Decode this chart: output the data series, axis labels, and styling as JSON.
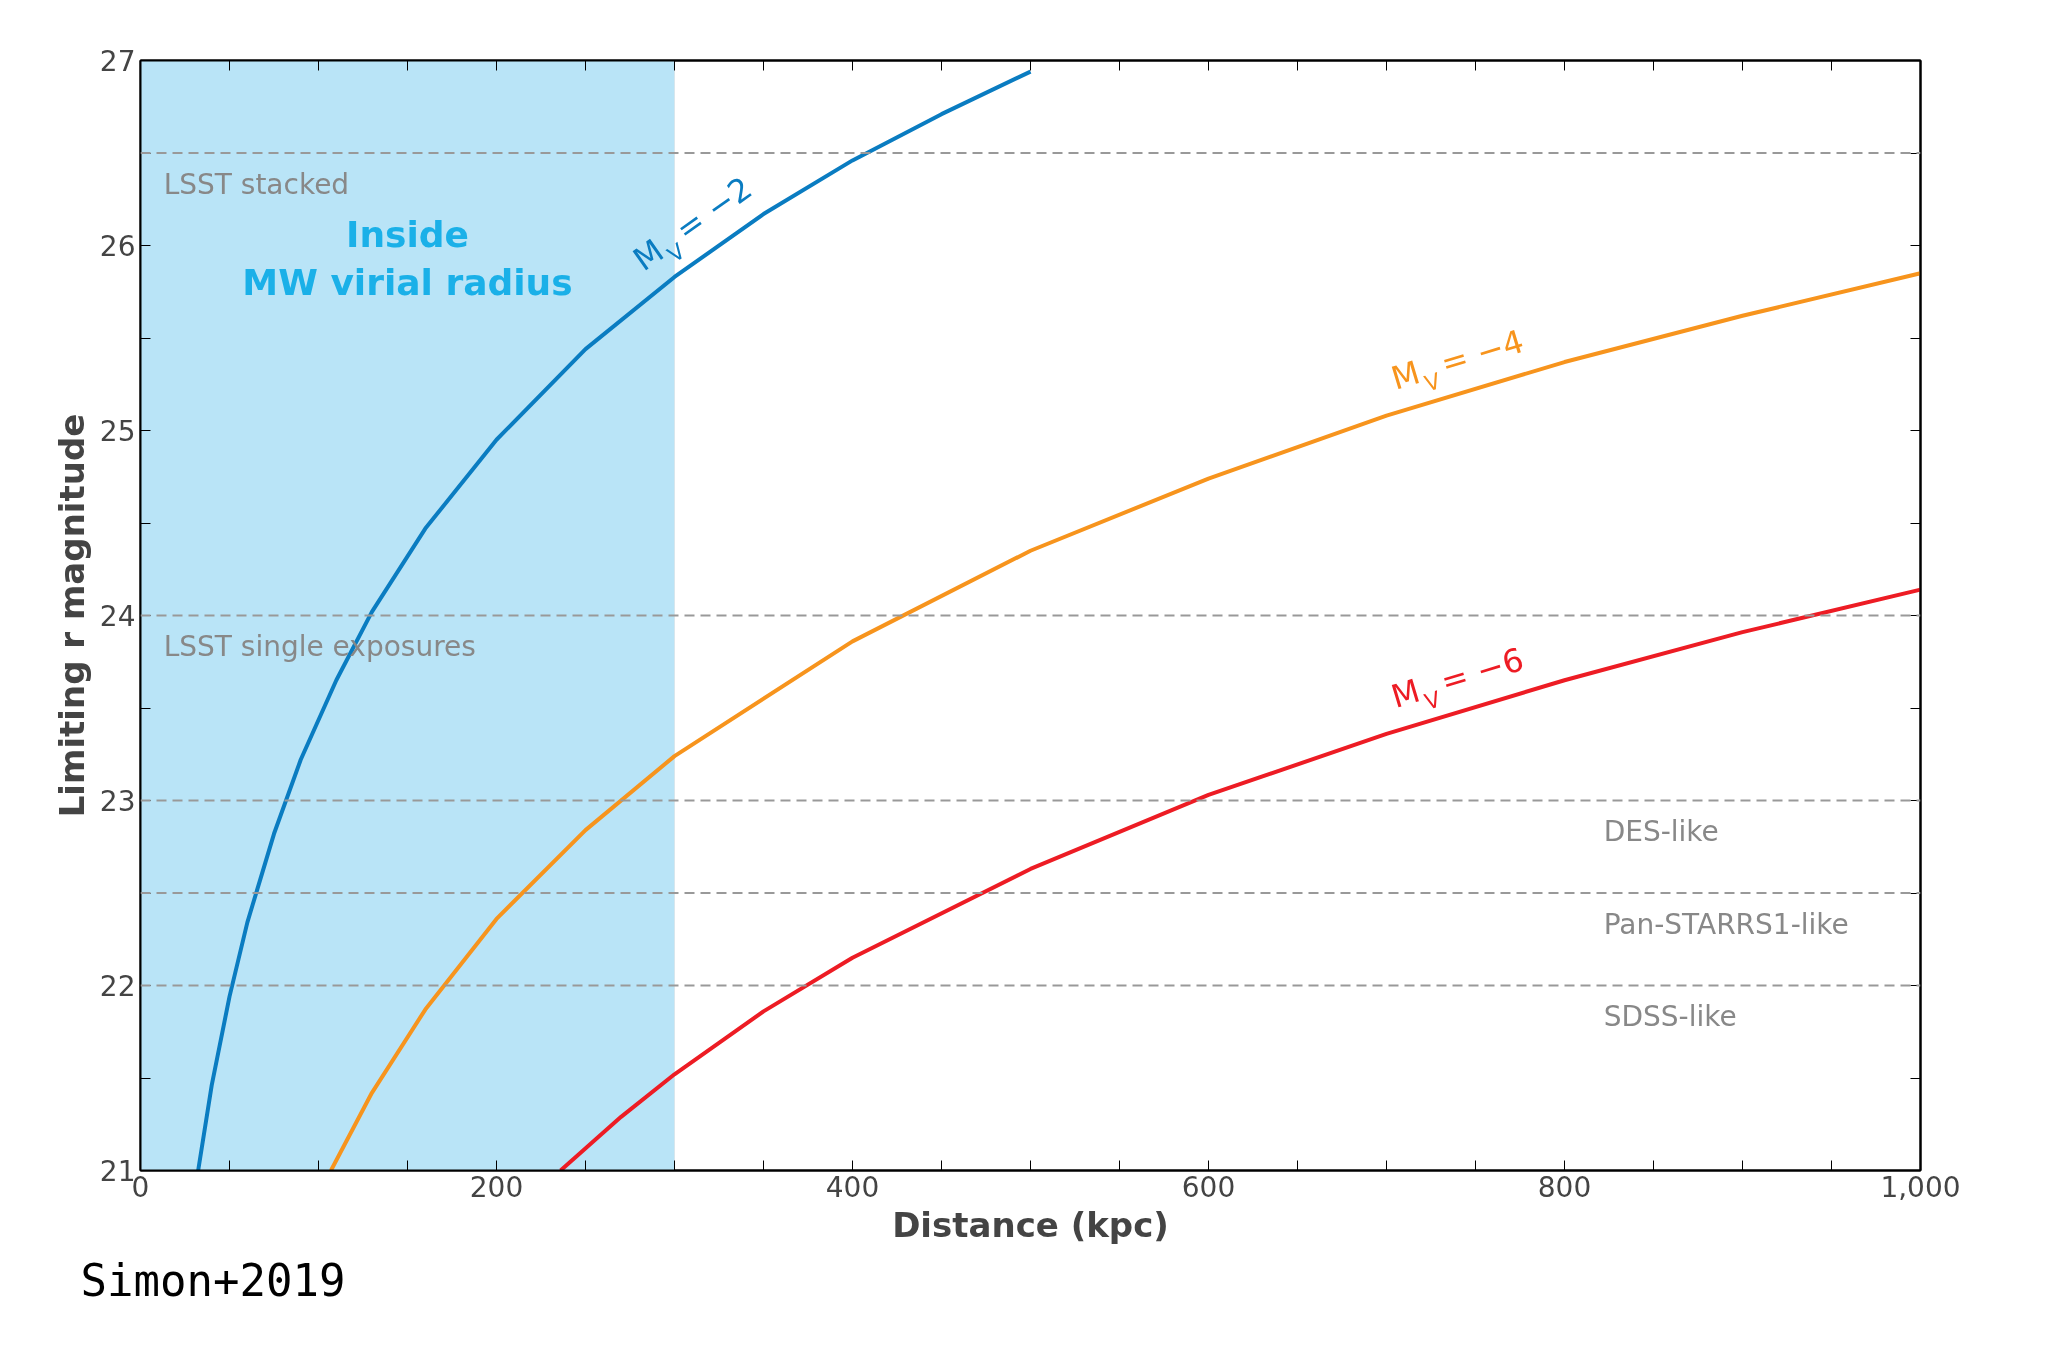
{
  "chart_data": {
    "type": "line",
    "xlabel": "Distance (kpc)",
    "ylabel": "Limiting r magnitude",
    "xlim": [
      0,
      1000
    ],
    "ylim": [
      21,
      27
    ],
    "xticks": [
      0,
      {
        "value": 50,
        "label": null
      },
      {
        "value": 100,
        "label": null
      },
      {
        "value": 150,
        "label": null
      },
      200,
      {
        "value": 250,
        "label": null
      },
      {
        "value": 300,
        "label": null
      },
      {
        "value": 350,
        "label": null
      },
      400,
      {
        "value": 450,
        "label": null
      },
      {
        "value": 500,
        "label": null
      },
      {
        "value": 550,
        "label": null
      },
      600,
      {
        "value": 650,
        "label": null
      },
      {
        "value": 700,
        "label": null
      },
      {
        "value": 750,
        "label": null
      },
      800,
      {
        "value": 850,
        "label": null
      },
      {
        "value": 900,
        "label": null
      },
      {
        "value": 950,
        "label": null
      },
      {
        "value": 1000,
        "label": "1,000"
      }
    ],
    "yticks": [
      21,
      {
        "value": 21.5,
        "label": null
      },
      22,
      {
        "value": 22.5,
        "label": null
      },
      23,
      {
        "value": 23.5,
        "label": null
      },
      24,
      {
        "value": 24.5,
        "label": null
      },
      25,
      {
        "value": 25.5,
        "label": null
      },
      26,
      {
        "value": 26.5,
        "label": null
      },
      27
    ],
    "grid": false,
    "series": [
      {
        "name": "M$_{V}$ = −2",
        "color": "#0a7cc1",
        "x": [
          32.4,
          40,
          50,
          60,
          75,
          90,
          110,
          130,
          160,
          200,
          250,
          300,
          350,
          400,
          450,
          500
        ],
        "values": [
          21.0,
          21.46,
          21.94,
          22.34,
          22.82,
          23.22,
          23.65,
          24.02,
          24.47,
          24.95,
          25.44,
          25.83,
          26.17,
          26.46,
          26.71,
          26.94
        ]
      },
      {
        "name": "M$_{V}$ = −4",
        "color": "#f7941d",
        "x": [
          107,
          130,
          160,
          200,
          250,
          300,
          400,
          500,
          600,
          700,
          800,
          900,
          1000
        ],
        "values": [
          21.0,
          21.42,
          21.87,
          22.36,
          22.84,
          23.24,
          23.86,
          24.35,
          24.74,
          25.08,
          25.37,
          25.62,
          25.85
        ]
      },
      {
        "name": "M$_{V}$ = −6",
        "color": "#ed1c24",
        "x": [
          236,
          270,
          300,
          350,
          400,
          500,
          600,
          700,
          800,
          900,
          1000
        ],
        "values": [
          21.0,
          21.29,
          21.52,
          21.86,
          22.15,
          22.63,
          23.03,
          23.36,
          23.65,
          23.91,
          24.14
        ]
      }
    ],
    "ref_lines": [
      {
        "axis": "y",
        "value": 26.5,
        "label": "LSST stacked",
        "color": "#999999",
        "line_style": "dashed"
      },
      {
        "axis": "y",
        "value": 24,
        "label": "LSST single exposures",
        "color": "#999999",
        "line_style": "dashed"
      },
      {
        "axis": "y",
        "value": 23,
        "label": "DES-like",
        "color": "#999999",
        "line_style": "dashed"
      },
      {
        "axis": "y",
        "value": 22.5,
        "label": "Pan-STARRS1-like",
        "color": "#999999",
        "line_style": "dashed"
      },
      {
        "axis": "y",
        "value": 22,
        "label": "SDSS-like",
        "color": "#999999",
        "line_style": "dashed"
      }
    ],
    "bands": [
      {
        "axis": "x",
        "from": 0,
        "to": 300,
        "label": "Inside\nMW virial radius",
        "color": "#b9e4f7"
      }
    ],
    "annotations": [
      "Simon+2019"
    ]
  }
}
